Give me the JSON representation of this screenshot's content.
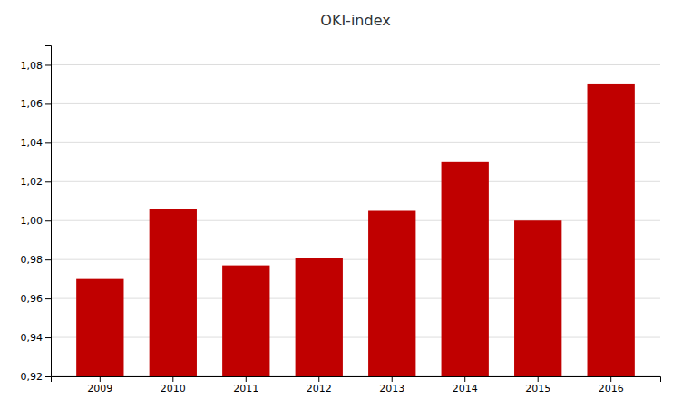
{
  "chart_data": {
    "type": "bar",
    "title": "OKI-index",
    "categories": [
      "2009",
      "2010",
      "2011",
      "2012",
      "2013",
      "2014",
      "2015",
      "2016"
    ],
    "values": [
      0.97,
      1.006,
      0.977,
      0.981,
      1.005,
      1.03,
      1.0,
      1.07
    ],
    "color": "#c00000",
    "ylim": [
      0.92,
      1.09
    ],
    "yticks": [
      {
        "value": 0.92,
        "label": "0,92"
      },
      {
        "value": 0.94,
        "label": "0,94"
      },
      {
        "value": 0.96,
        "label": "0,96"
      },
      {
        "value": 0.98,
        "label": "0,98"
      },
      {
        "value": 1.0,
        "label": "1,00"
      },
      {
        "value": 1.02,
        "label": "1,02"
      },
      {
        "value": 1.04,
        "label": "1,04"
      },
      {
        "value": 1.06,
        "label": "1,06"
      },
      {
        "value": 1.08,
        "label": "1,08"
      }
    ],
    "grid": true
  }
}
